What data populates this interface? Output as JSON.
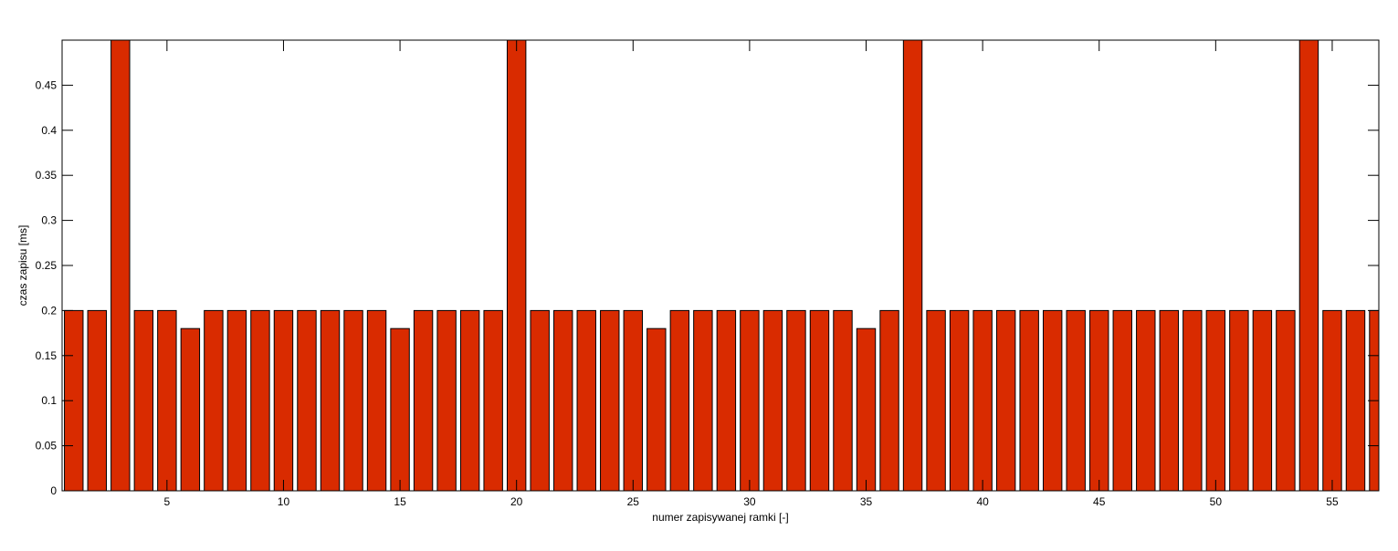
{
  "chart_data": {
    "type": "bar",
    "title": "",
    "xlabel": "numer zapisywanej ramki [-]",
    "ylabel": "czas zapisu [ms]",
    "xlim": [
      0.5,
      57
    ],
    "ylim": [
      0,
      0.5
    ],
    "grid": false,
    "colors": {
      "bar_fill": "#D92B00",
      "bar_edge": "#000000",
      "axes": "#000000"
    },
    "x_ticks": [
      5,
      10,
      15,
      20,
      25,
      30,
      35,
      40,
      45,
      50,
      55
    ],
    "y_ticks": [
      0,
      0.05,
      0.1,
      0.15,
      0.2,
      0.25,
      0.3,
      0.35,
      0.4,
      0.45
    ],
    "y_tick_labels": [
      "0",
      "0.05",
      "0.1",
      "0.15",
      "0.2",
      "0.25",
      "0.3",
      "0.35",
      "0.4",
      "0.45"
    ],
    "categories": [
      1,
      2,
      3,
      4,
      5,
      6,
      7,
      8,
      9,
      10,
      11,
      12,
      13,
      14,
      15,
      16,
      17,
      18,
      19,
      20,
      21,
      22,
      23,
      24,
      25,
      26,
      27,
      28,
      29,
      30,
      31,
      32,
      33,
      34,
      35,
      36,
      37,
      38,
      39,
      40,
      41,
      42,
      43,
      44,
      45,
      46,
      47,
      48,
      49,
      50,
      51,
      52,
      53,
      54,
      55,
      56,
      57
    ],
    "values": [
      0.2,
      0.2,
      0.5,
      0.2,
      0.2,
      0.18,
      0.2,
      0.2,
      0.2,
      0.2,
      0.2,
      0.2,
      0.2,
      0.2,
      0.18,
      0.2,
      0.2,
      0.2,
      0.2,
      0.5,
      0.2,
      0.2,
      0.2,
      0.2,
      0.2,
      0.18,
      0.2,
      0.2,
      0.2,
      0.2,
      0.2,
      0.2,
      0.2,
      0.2,
      0.18,
      0.2,
      0.5,
      0.2,
      0.2,
      0.2,
      0.2,
      0.2,
      0.2,
      0.2,
      0.2,
      0.2,
      0.2,
      0.2,
      0.2,
      0.2,
      0.2,
      0.2,
      0.2,
      0.5,
      0.2,
      0.2,
      0.2
    ]
  }
}
